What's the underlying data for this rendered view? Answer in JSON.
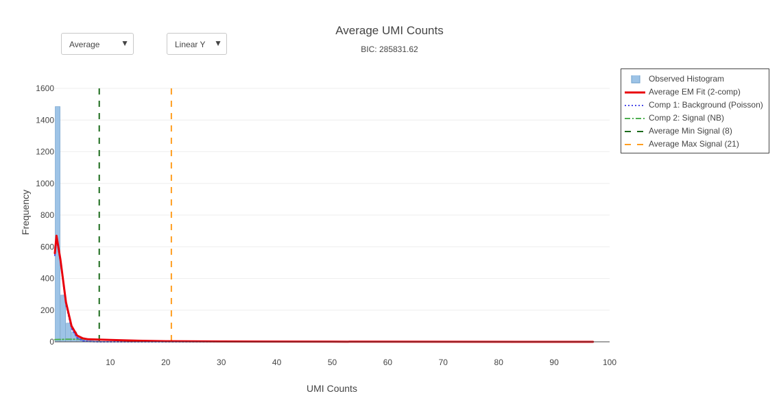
{
  "controls": {
    "mode_select": "Average",
    "scale_select": "Linear Y",
    "arrow": "▼"
  },
  "chart_data": {
    "type": "bar",
    "title": "Average UMI Counts",
    "subtitle": "BIC: 285831.62",
    "xlabel": "UMI Counts",
    "ylabel": "Frequency",
    "xlim": [
      0,
      100
    ],
    "ylim": [
      0,
      1600
    ],
    "xticks": [
      10,
      20,
      30,
      40,
      50,
      60,
      70,
      80,
      90,
      100
    ],
    "yticks": [
      0,
      200,
      400,
      600,
      800,
      1000,
      1200,
      1400,
      1600
    ],
    "grid": true,
    "legend_position": "right",
    "histogram": {
      "name": "Observed Histogram",
      "color": "#9dc3e6",
      "bin_width": 1,
      "x": [
        0,
        1,
        2,
        3,
        4,
        5,
        6,
        7,
        8,
        9,
        10
      ],
      "values": [
        1485,
        295,
        118,
        62,
        30,
        15,
        8,
        5,
        3,
        2,
        1
      ]
    },
    "series": [
      {
        "name": "Average EM Fit (2-comp)",
        "color": "#e8000b",
        "style": "solid",
        "x": [
          0,
          0.3,
          1,
          2,
          3,
          4,
          5,
          6,
          7,
          8,
          10,
          15,
          20,
          30,
          50,
          97
        ],
        "y": [
          560,
          670,
          520,
          250,
          100,
          40,
          22,
          16,
          15,
          14,
          12,
          7,
          4,
          2,
          1,
          0
        ]
      },
      {
        "name": "Comp 1: Background (Poisson)",
        "color": "#4a4ae8",
        "style": "dot",
        "x": [
          0,
          0.3,
          1,
          2,
          3,
          4,
          5,
          6,
          7,
          8,
          10,
          20,
          97
        ],
        "y": [
          545,
          655,
          505,
          235,
          85,
          25,
          7,
          2,
          1,
          0,
          0,
          0,
          0
        ]
      },
      {
        "name": "Comp 2: Signal (NB)",
        "color": "#4caf50",
        "style": "dashdot",
        "x": [
          0,
          2,
          4,
          6,
          8,
          10,
          15,
          20,
          30,
          50,
          97
        ],
        "y": [
          14,
          16,
          16,
          15,
          14,
          12,
          7,
          4,
          2,
          1,
          0
        ]
      }
    ],
    "vlines": [
      {
        "name": "Average Min Signal (8)",
        "x": 8,
        "color": "#1b6b1b",
        "style": "dash"
      },
      {
        "name": "Average Max Signal (21)",
        "x": 21,
        "color": "#ff9e1f",
        "style": "dash"
      }
    ]
  }
}
